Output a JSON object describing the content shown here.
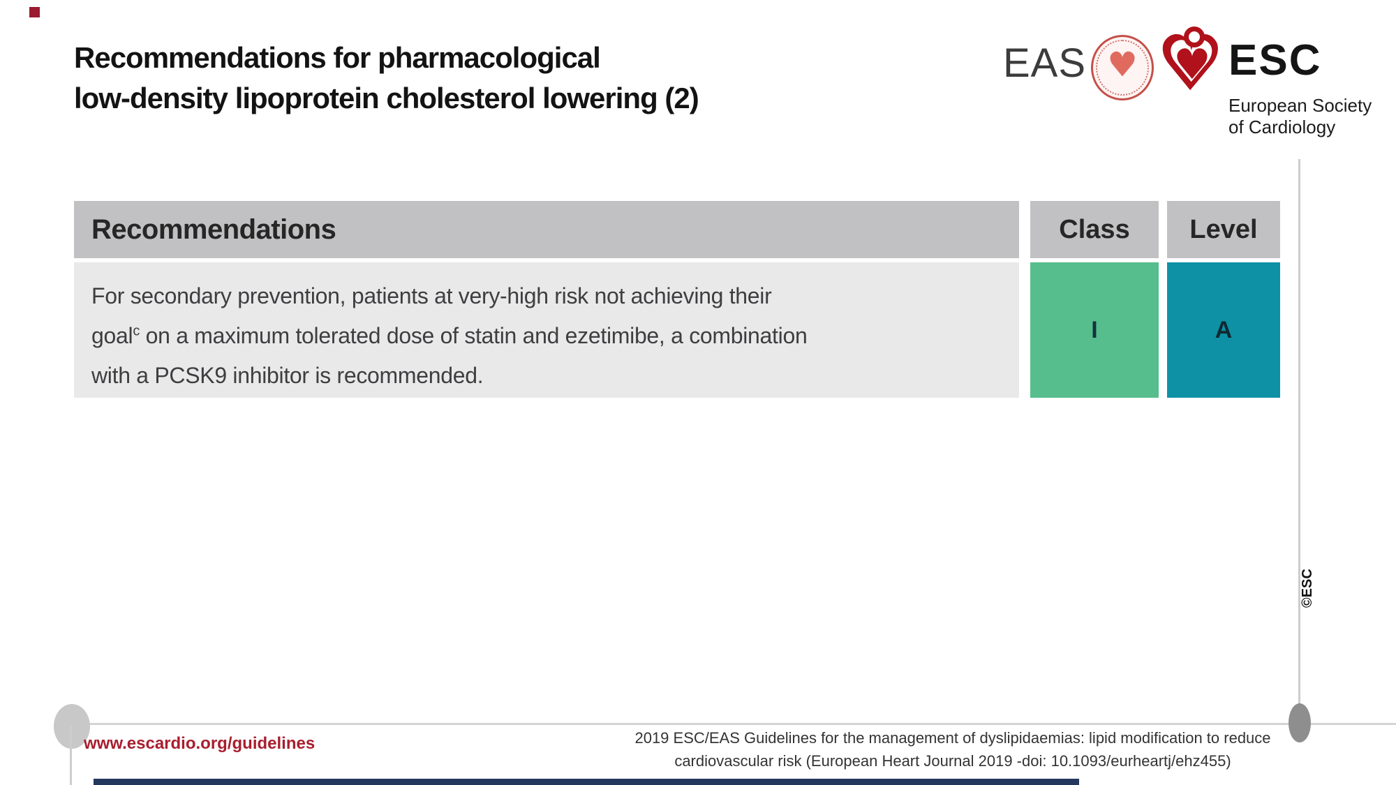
{
  "slide": {
    "title_line1": "Recommendations for pharmacological",
    "title_line2": "low-density lipoprotein cholesterol lowering (2)",
    "copyright_vertical": "©ESC"
  },
  "logos": {
    "eas_label": "EAS",
    "esc_label": "ESC",
    "esc_subtitle_line1": "European Society",
    "esc_subtitle_line2": "of Cardiology",
    "eas_seal_icon": "eas-red-heart-seal",
    "esc_heart_icon": "esc-heart-with-stethoscope",
    "heart_glyph": "♥"
  },
  "table": {
    "headers": {
      "recommendations": "Recommendations",
      "class": "Class",
      "level": "Level"
    },
    "rows": [
      {
        "text_line1": "For secondary prevention, patients at very-high risk not achieving their",
        "text_line2_pre": "goal",
        "text_line2_sup": "c",
        "text_line2_post": " on a maximum tolerated dose of statin and ezetimibe, a combination",
        "text_line3": "with a PCSK9 inhibitor is recommended.",
        "class_value": "I",
        "level_value": "A"
      }
    ]
  },
  "footer": {
    "website": "www.escardio.org/guidelines",
    "citation_line1": "2019 ESC/EAS Guidelines for the management of dyslipidaemias: lipid modification to reduce",
    "citation_line2": "cardiovascular risk (European Heart Journal 2019 -doi: 10.1093/eurheartj/ehz455)"
  },
  "colors": {
    "accent_red": "#A81E2E",
    "corner_square_red": "#9B1B30",
    "logo_red": "#B0111B",
    "table_header_gray": "#C1C1C3",
    "table_row_gray": "#E9E9EA",
    "class_green": "#55BE8C",
    "level_teal": "#0E91A5",
    "bottom_bar_navy": "#24385E"
  }
}
